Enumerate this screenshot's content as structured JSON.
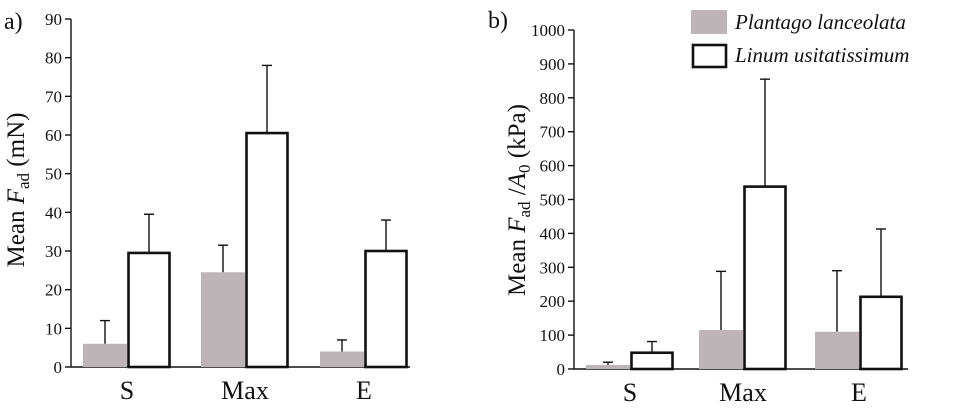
{
  "legend": [
    {
      "label": "Plantago lanceolata",
      "color": "#bcb4b6",
      "filled": true
    },
    {
      "label": "Linum usitatissimum",
      "color": "#ffffff",
      "filled": false
    }
  ],
  "chart_data": [
    {
      "type": "bar",
      "panel_label": "a)",
      "ylabel": "Mean F_ad (mN)",
      "ylabel_parts": {
        "prefix": "Mean ",
        "symbol": "F",
        "subscript": "ad",
        "suffix": " (mN)"
      },
      "categories": [
        "S",
        "Max",
        "E"
      ],
      "ylim": [
        0,
        90
      ],
      "yticks": [
        0,
        10,
        20,
        30,
        40,
        50,
        60,
        70,
        80,
        90
      ],
      "series": [
        {
          "name": "Plantago lanceolata",
          "values": [
            6,
            24.5,
            4
          ],
          "errors": [
            6,
            7,
            3
          ],
          "color": "#bcb4b6"
        },
        {
          "name": "Linum usitatissimum",
          "values": [
            29.5,
            60.5,
            30
          ],
          "errors": [
            10,
            17.5,
            8
          ],
          "color": "#ffffff"
        }
      ],
      "grid": false
    },
    {
      "type": "bar",
      "panel_label": "b)",
      "ylabel": "Mean F_ad /A_0 (kPa)",
      "ylabel_parts": {
        "prefix": "Mean ",
        "symbol": "F",
        "subscript": "ad",
        "mid": " /",
        "symbol2": "A",
        "subscript2": "0",
        "suffix": " (kPa)"
      },
      "categories": [
        "S",
        "Max",
        "E"
      ],
      "ylim": [
        0,
        1000
      ],
      "yticks": [
        0,
        100,
        200,
        300,
        400,
        500,
        600,
        700,
        800,
        900,
        1000
      ],
      "series": [
        {
          "name": "Plantago lanceolata",
          "values": [
            12,
            115,
            110
          ],
          "errors": [
            8,
            173,
            180
          ],
          "color": "#bcb4b6"
        },
        {
          "name": "Linum usitatissimum",
          "values": [
            48,
            538,
            213
          ],
          "errors": [
            33,
            317,
            200
          ],
          "color": "#ffffff"
        }
      ],
      "legend_position": "top-right",
      "grid": false
    }
  ]
}
